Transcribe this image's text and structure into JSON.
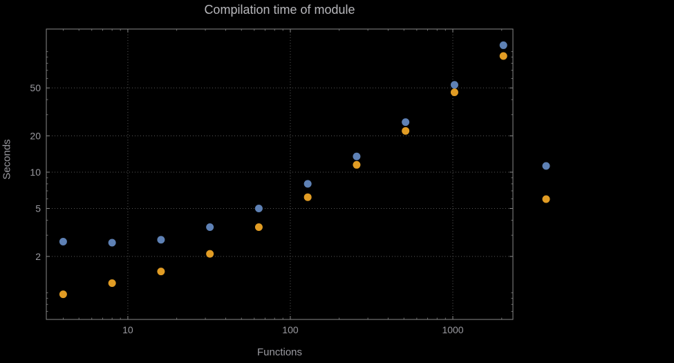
{
  "colors": {
    "background": "#000000",
    "frame": "#8a8a8a",
    "grid": "#5a5a5a",
    "tick_text": "#9a9aa0",
    "title_text": "#b8b8bc",
    "series_blue": "#5e81b5",
    "series_orange": "#e19c24"
  },
  "chart_data": {
    "type": "scatter",
    "title": "Compilation time of module",
    "xlabel": "Functions",
    "ylabel": "Seconds",
    "x_scale": "log",
    "y_scale": "log",
    "xlim": [
      3.15,
      2344
    ],
    "ylim": [
      0.6,
      154
    ],
    "x_tick_labels": [
      10,
      100,
      1000
    ],
    "y_tick_labels": [
      2,
      5,
      10,
      20,
      50
    ],
    "grid": true,
    "legend_position": "right-outside",
    "series": [
      {
        "name": "blue",
        "color": "#5e81b5",
        "points": [
          [
            4,
            2.65
          ],
          [
            8,
            2.6
          ],
          [
            16,
            2.75
          ],
          [
            32,
            3.5
          ],
          [
            64,
            5.0
          ],
          [
            128,
            8.0
          ],
          [
            256,
            13.5
          ],
          [
            512,
            26
          ],
          [
            1024,
            53
          ],
          [
            2048,
            113
          ]
        ]
      },
      {
        "name": "orange",
        "color": "#e19c24",
        "points": [
          [
            4,
            0.97
          ],
          [
            8,
            1.2
          ],
          [
            16,
            1.5
          ],
          [
            32,
            2.1
          ],
          [
            64,
            3.5
          ],
          [
            128,
            6.2
          ],
          [
            256,
            11.5
          ],
          [
            512,
            22
          ],
          [
            1024,
            46
          ],
          [
            2048,
            92
          ]
        ]
      }
    ]
  }
}
